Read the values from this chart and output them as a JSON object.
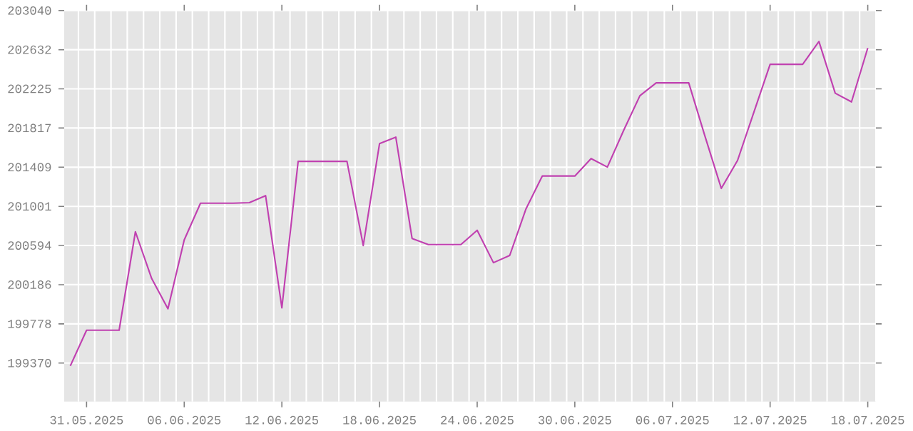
{
  "chart_data": {
    "type": "line",
    "color": "#c040b0",
    "grid": true,
    "marker": "none",
    "line_style": "solid",
    "x": [
      "2025-05-30",
      "2025-05-31",
      "2025-06-01",
      "2025-06-02",
      "2025-06-03",
      "2025-06-04",
      "2025-06-05",
      "2025-06-06",
      "2025-06-07",
      "2025-06-08",
      "2025-06-09",
      "2025-06-10",
      "2025-06-11",
      "2025-06-12",
      "2025-06-13",
      "2025-06-14",
      "2025-06-15",
      "2025-06-16",
      "2025-06-17",
      "2025-06-18",
      "2025-06-19",
      "2025-06-20",
      "2025-06-21",
      "2025-06-22",
      "2025-06-23",
      "2025-06-24",
      "2025-06-25",
      "2025-06-26",
      "2025-06-27",
      "2025-06-28",
      "2025-06-29",
      "2025-06-30",
      "2025-07-01",
      "2025-07-02",
      "2025-07-03",
      "2025-07-04",
      "2025-07-05",
      "2025-07-06",
      "2025-07-07",
      "2025-07-08",
      "2025-07-09",
      "2025-07-10",
      "2025-07-11",
      "2025-07-12",
      "2025-07-13",
      "2025-07-14",
      "2025-07-15",
      "2025-07-16",
      "2025-07-17",
      "2025-07-18"
    ],
    "values": [
      199340,
      199712,
      199712,
      199712,
      200737,
      200250,
      199935,
      200652,
      201034,
      201034,
      201034,
      201040,
      201113,
      199945,
      201470,
      201470,
      201470,
      201470,
      200593,
      201654,
      201722,
      200667,
      200603,
      200603,
      200603,
      200752,
      200415,
      200490,
      200975,
      201317,
      201317,
      201317,
      201499,
      201410,
      201792,
      202153,
      202287,
      202287,
      202287,
      201730,
      201188,
      201480,
      201980,
      202480,
      202480,
      202480,
      202718,
      202179,
      202089,
      202650
    ],
    "xlim": [
      "2025-05-29T15:00",
      "2025-07-18T12:00"
    ],
    "xticks": [
      {
        "value": "2025-05-31",
        "label": "31.05.2025"
      },
      {
        "value": "2025-06-06",
        "label": "06.06.2025"
      },
      {
        "value": "2025-06-12",
        "label": "12.06.2025"
      },
      {
        "value": "2025-06-18",
        "label": "18.06.2025"
      },
      {
        "value": "2025-06-24",
        "label": "24.06.2025"
      },
      {
        "value": "2025-06-30",
        "label": "30.06.2025"
      },
      {
        "value": "2025-07-06",
        "label": "06.07.2025"
      },
      {
        "value": "2025-07-12",
        "label": "12.07.2025"
      },
      {
        "value": "2025-07-18",
        "label": "18.07.2025"
      }
    ],
    "ylim": [
      198969,
      203040
    ],
    "yticks": [
      199370,
      199778,
      200186,
      200594,
      201001,
      201409,
      201817,
      202225,
      202632,
      203040
    ]
  }
}
